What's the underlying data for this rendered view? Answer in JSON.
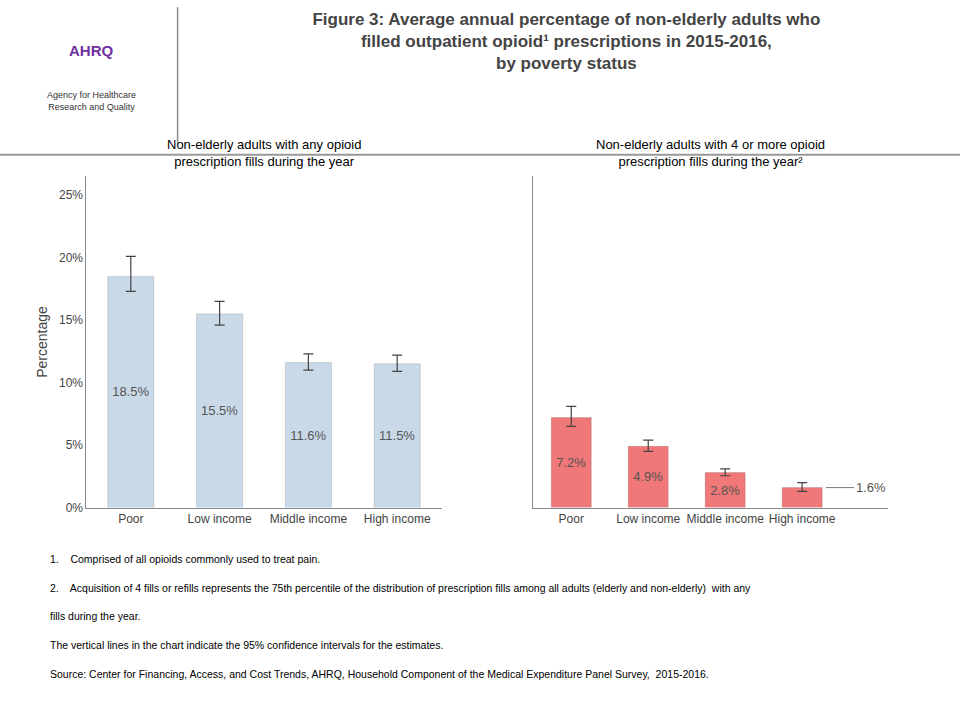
{
  "title": "Figure 3: Average annual percentage of non-elderly adults who\nfilled outpatient opioid¹ prescriptions in 2015-2016,\nby poverty status",
  "annotations": [
    "AHRQ",
    "Agency for Healthcare\nResearch and Quality"
  ],
  "footnotes": [
    "1.    Comprised of all opioids commonly used to treat pain.",
    "2.    Acquisition of 4 fills or refills represents the 75th percentile of the distribution of prescription fills among all adults (elderly and non-elderly)  with any",
    "fills during the year.",
    "The vertical lines in the chart indicate the 95% confidence intervals for the estimates.",
    "Source: Center for Financing, Access, and Cost Trends, AHRQ, Household Component of the Medical Expenditure Panel Survey,  2015-2016."
  ],
  "chart_data": [
    {
      "type": "bar",
      "subtitle": "Non-elderly adults with any opioid\nprescription fills during the year",
      "categories": [
        "Poor",
        "Low income",
        "Middle income",
        "High income"
      ],
      "values": [
        18.5,
        15.5,
        11.6,
        11.5
      ],
      "value_labels": [
        "18.5%",
        "15.5%",
        "11.6%",
        "11.5%"
      ],
      "error_plus": [
        1.6,
        1.0,
        0.7,
        0.7
      ],
      "error_minus": [
        1.2,
        0.9,
        0.6,
        0.6
      ],
      "color": "#c9d9e8",
      "ylabel": "Percentage",
      "ylim": [
        0,
        26.5
      ],
      "yticks": [
        {
          "value": 0,
          "label": "0%"
        },
        {
          "value": 5,
          "label": "5%"
        },
        {
          "value": 10,
          "label": "10%"
        },
        {
          "value": 15,
          "label": "15%"
        },
        {
          "value": 20,
          "label": "20%"
        },
        {
          "value": 25,
          "label": "25%"
        }
      ],
      "grid": false,
      "data_labels": true
    },
    {
      "type": "bar",
      "subtitle": "Non-elderly adults with 4 or more opioid\nprescription fills during the year²",
      "categories": [
        "Poor",
        "Low income",
        "Middle income",
        "High income"
      ],
      "values": [
        7.2,
        4.9,
        2.8,
        1.6
      ],
      "value_labels": [
        "7.2%",
        "4.9%",
        "2.8%",
        "1.6%"
      ],
      "error_plus": [
        0.9,
        0.5,
        0.3,
        0.4
      ],
      "error_minus": [
        0.7,
        0.4,
        0.25,
        0.3
      ],
      "color": "#f07878",
      "ylim": [
        0,
        26.5
      ],
      "yticks": [
        0,
        5,
        10,
        15,
        20,
        25
      ],
      "grid": false,
      "data_labels": true,
      "tick_labels": "x"
    }
  ]
}
